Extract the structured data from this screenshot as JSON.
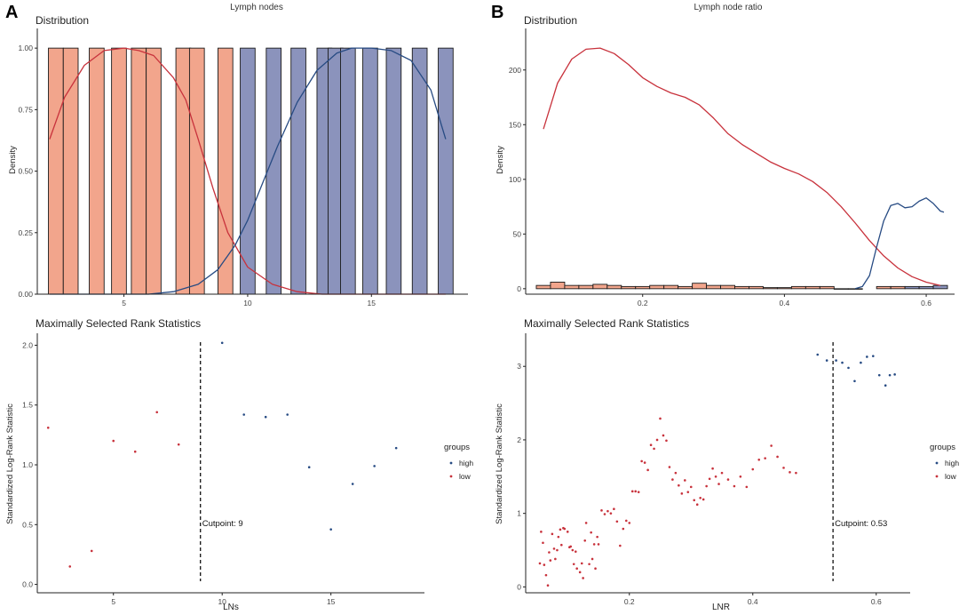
{
  "panels": {
    "a": {
      "letter": "A",
      "title": "Lymph nodes"
    },
    "b": {
      "letter": "B",
      "title": "Lymph node ratio"
    }
  },
  "colors": {
    "low": "#E8836B",
    "low_fill": "#F2A58C",
    "high": "#8B93BC",
    "low_line": "#C8323C",
    "high_line": "#274B83",
    "axis": "#222222",
    "tick_text": "#444444"
  },
  "chart_data": [
    {
      "id": "a_distribution",
      "type": "bar",
      "title": "Distribution",
      "xlabel": "",
      "ylabel": "Density",
      "xlim": [
        1.5,
        18.9
      ],
      "ylim": [
        0,
        1.08
      ],
      "x_ticks": [
        5,
        10,
        15
      ],
      "y_ticks": [
        0.0,
        0.25,
        0.5,
        0.75,
        1.0
      ],
      "y_tick_labels": [
        "0.00",
        "0.25",
        "0.50",
        "0.75",
        "1.00"
      ],
      "bar_width": 0.6,
      "bars": [
        {
          "x": 2.25,
          "y": 1.0,
          "group": "low"
        },
        {
          "x": 2.85,
          "y": 1.0,
          "group": "low"
        },
        {
          "x": 3.9,
          "y": 1.0,
          "group": "low"
        },
        {
          "x": 4.8,
          "y": 1.0,
          "group": "low"
        },
        {
          "x": 5.6,
          "y": 1.0,
          "group": "low"
        },
        {
          "x": 6.2,
          "y": 1.0,
          "group": "low"
        },
        {
          "x": 7.4,
          "y": 1.0,
          "group": "low"
        },
        {
          "x": 7.95,
          "y": 1.0,
          "group": "low"
        },
        {
          "x": 9.1,
          "y": 1.0,
          "group": "low"
        },
        {
          "x": 10.0,
          "y": 1.0,
          "group": "high"
        },
        {
          "x": 11.05,
          "y": 1.0,
          "group": "high"
        },
        {
          "x": 12.05,
          "y": 1.0,
          "group": "high"
        },
        {
          "x": 13.1,
          "y": 1.0,
          "group": "high"
        },
        {
          "x": 13.55,
          "y": 1.0,
          "group": "high"
        },
        {
          "x": 14.05,
          "y": 1.0,
          "group": "high"
        },
        {
          "x": 14.95,
          "y": 1.0,
          "group": "high"
        },
        {
          "x": 15.9,
          "y": 1.0,
          "group": "high"
        },
        {
          "x": 16.95,
          "y": 1.0,
          "group": "high"
        },
        {
          "x": 18.0,
          "y": 1.0,
          "group": "high"
        }
      ],
      "series": [
        {
          "name": "low",
          "x": [
            2.0,
            2.6,
            3.4,
            4.2,
            5.0,
            5.6,
            6.2,
            7.0,
            7.5,
            8.0,
            8.6,
            9.2,
            10.0,
            11.0,
            12.0,
            13.0,
            14.0,
            15.0,
            16.0,
            17.0,
            18.0
          ],
          "values": [
            0.63,
            0.8,
            0.93,
            0.99,
            1.0,
            0.99,
            0.97,
            0.88,
            0.79,
            0.63,
            0.43,
            0.25,
            0.11,
            0.04,
            0.01,
            0.0,
            0.0,
            0.0,
            0.0,
            0.0,
            0.0
          ]
        },
        {
          "name": "high",
          "x": [
            2.0,
            4.0,
            6.0,
            7.0,
            8.0,
            8.8,
            9.5,
            10.0,
            10.6,
            11.2,
            12.0,
            12.8,
            13.6,
            14.2,
            15.0,
            15.8,
            16.6,
            17.4,
            18.0
          ],
          "values": [
            0.0,
            0.0,
            0.0,
            0.01,
            0.04,
            0.1,
            0.2,
            0.3,
            0.45,
            0.6,
            0.78,
            0.91,
            0.98,
            1.0,
            1.0,
            0.99,
            0.95,
            0.83,
            0.63
          ]
        }
      ]
    },
    {
      "id": "b_distribution",
      "type": "bar",
      "title": "Distribution",
      "xlabel": "",
      "ylabel": "Density",
      "xlim": [
        0.035,
        0.64
      ],
      "ylim": [
        -5,
        238
      ],
      "x_ticks": [
        0.2,
        0.4,
        0.6
      ],
      "y_ticks": [
        0,
        50,
        100,
        150,
        200
      ],
      "y_tick_labels": [
        "0",
        "50",
        "100",
        "150",
        "200"
      ],
      "bar_width": 0.02,
      "bars": [
        {
          "x": 0.06,
          "y": 3,
          "group": "low"
        },
        {
          "x": 0.08,
          "y": 6,
          "group": "low"
        },
        {
          "x": 0.1,
          "y": 3,
          "group": "low"
        },
        {
          "x": 0.12,
          "y": 3,
          "group": "low"
        },
        {
          "x": 0.14,
          "y": 4,
          "group": "low"
        },
        {
          "x": 0.16,
          "y": 3,
          "group": "low"
        },
        {
          "x": 0.18,
          "y": 2,
          "group": "low"
        },
        {
          "x": 0.2,
          "y": 2,
          "group": "low"
        },
        {
          "x": 0.22,
          "y": 3,
          "group": "low"
        },
        {
          "x": 0.24,
          "y": 3,
          "group": "low"
        },
        {
          "x": 0.26,
          "y": 2,
          "group": "low"
        },
        {
          "x": 0.28,
          "y": 5,
          "group": "low"
        },
        {
          "x": 0.3,
          "y": 3,
          "group": "low"
        },
        {
          "x": 0.32,
          "y": 3,
          "group": "low"
        },
        {
          "x": 0.34,
          "y": 2,
          "group": "low"
        },
        {
          "x": 0.36,
          "y": 2,
          "group": "low"
        },
        {
          "x": 0.38,
          "y": 1,
          "group": "low"
        },
        {
          "x": 0.4,
          "y": 1,
          "group": "low"
        },
        {
          "x": 0.42,
          "y": 2,
          "group": "low"
        },
        {
          "x": 0.44,
          "y": 2,
          "group": "low"
        },
        {
          "x": 0.46,
          "y": 2,
          "group": "low"
        },
        {
          "x": 0.48,
          "y": 0,
          "group": "low"
        },
        {
          "x": 0.5,
          "y": 0,
          "group": "low"
        },
        {
          "x": 0.54,
          "y": 2,
          "group": "low"
        },
        {
          "x": 0.56,
          "y": 2,
          "group": "low"
        },
        {
          "x": 0.58,
          "y": 2,
          "group": "high"
        },
        {
          "x": 0.6,
          "y": 2,
          "group": "high"
        },
        {
          "x": 0.62,
          "y": 3,
          "group": "high"
        }
      ],
      "series": [
        {
          "name": "low",
          "x": [
            0.06,
            0.08,
            0.1,
            0.12,
            0.14,
            0.16,
            0.18,
            0.2,
            0.22,
            0.24,
            0.26,
            0.28,
            0.3,
            0.32,
            0.34,
            0.36,
            0.38,
            0.4,
            0.42,
            0.44,
            0.46,
            0.48,
            0.5,
            0.52,
            0.54,
            0.56,
            0.58,
            0.6,
            0.62
          ],
          "values": [
            146,
            188,
            210,
            219,
            220,
            215,
            205,
            193,
            185,
            179,
            175,
            168,
            156,
            142,
            132,
            124,
            116,
            110,
            105,
            98,
            88,
            75,
            60,
            44,
            30,
            19,
            11,
            6,
            3
          ]
        },
        {
          "name": "high",
          "x": [
            0.5,
            0.51,
            0.52,
            0.53,
            0.54,
            0.55,
            0.56,
            0.57,
            0.58,
            0.59,
            0.6,
            0.61,
            0.62,
            0.625
          ],
          "values": [
            0,
            2,
            12,
            38,
            62,
            76,
            78,
            74,
            75,
            80,
            83,
            78,
            71,
            70
          ]
        }
      ]
    },
    {
      "id": "a_msrs",
      "type": "scatter",
      "title": "Maximally Selected Rank Statistics",
      "xlabel": "LNs",
      "ylabel": "Standardized Log-Rank Statistic",
      "xlim": [
        1.5,
        19.3
      ],
      "ylim": [
        -0.07,
        2.1
      ],
      "x_ticks": [
        5,
        10,
        15
      ],
      "y_ticks": [
        0.0,
        0.5,
        1.0,
        1.5,
        2.0
      ],
      "y_tick_labels": [
        "0.0",
        "0.5",
        "1.0",
        "1.5",
        "2.0"
      ],
      "cutpoint": 9,
      "cutpoint_label": "Cutpoint: 9",
      "legend_title": "groups",
      "legend_labels": [
        "high",
        "low"
      ],
      "series": [
        {
          "name": "low",
          "x": [
            2,
            3,
            4,
            5,
            6,
            7,
            8
          ],
          "values": [
            1.31,
            0.15,
            0.28,
            1.2,
            1.11,
            1.44,
            1.17
          ]
        },
        {
          "name": "high",
          "x": [
            10,
            11,
            12,
            13,
            14,
            15,
            16,
            17,
            18
          ],
          "values": [
            2.02,
            1.42,
            1.4,
            1.42,
            0.98,
            0.46,
            0.84,
            0.99,
            1.14
          ]
        }
      ]
    },
    {
      "id": "b_msrs",
      "type": "scatter",
      "title": "Maximally Selected Rank Statistics",
      "xlabel": "LNR",
      "ylabel": "Standardized Log-Rank Statistic",
      "xlim": [
        0.032,
        0.655
      ],
      "ylim": [
        -0.08,
        3.45
      ],
      "x_ticks": [
        0.2,
        0.4,
        0.6
      ],
      "y_ticks": [
        0,
        1,
        2,
        3
      ],
      "y_tick_labels": [
        "0",
        "1",
        "2",
        "3"
      ],
      "cutpoint": 0.53,
      "cutpoint_label": "Cutpoint: 0.53",
      "legend_title": "groups",
      "legend_labels": [
        "high",
        "low"
      ],
      "series": [
        {
          "name": "low",
          "x": [
            0.055,
            0.057,
            0.06,
            0.062,
            0.065,
            0.068,
            0.07,
            0.072,
            0.075,
            0.078,
            0.08,
            0.083,
            0.085,
            0.088,
            0.09,
            0.093,
            0.095,
            0.1,
            0.103,
            0.105,
            0.108,
            0.11,
            0.113,
            0.115,
            0.12,
            0.123,
            0.125,
            0.128,
            0.13,
            0.135,
            0.138,
            0.14,
            0.143,
            0.145,
            0.148,
            0.15,
            0.155,
            0.16,
            0.165,
            0.17,
            0.175,
            0.18,
            0.185,
            0.19,
            0.195,
            0.2,
            0.205,
            0.21,
            0.215,
            0.22,
            0.225,
            0.23,
            0.235,
            0.24,
            0.245,
            0.25,
            0.255,
            0.26,
            0.265,
            0.27,
            0.275,
            0.28,
            0.285,
            0.29,
            0.295,
            0.3,
            0.305,
            0.31,
            0.315,
            0.32,
            0.325,
            0.33,
            0.335,
            0.34,
            0.345,
            0.35,
            0.36,
            0.37,
            0.38,
            0.39,
            0.4,
            0.41,
            0.42,
            0.43,
            0.44,
            0.45,
            0.46,
            0.47
          ],
          "values": [
            0.32,
            0.75,
            0.6,
            0.3,
            0.16,
            0.02,
            0.47,
            0.36,
            0.72,
            0.52,
            0.38,
            0.5,
            0.68,
            0.78,
            0.57,
            0.8,
            0.79,
            0.75,
            0.54,
            0.55,
            0.5,
            0.31,
            0.48,
            0.25,
            0.2,
            0.32,
            0.12,
            0.63,
            0.87,
            0.31,
            0.74,
            0.38,
            0.58,
            0.25,
            0.68,
            0.58,
            1.04,
            0.99,
            1.03,
            1.0,
            1.06,
            0.89,
            0.56,
            0.79,
            0.9,
            0.87,
            1.3,
            1.3,
            1.29,
            1.71,
            1.69,
            1.59,
            1.93,
            1.88,
            2.0,
            2.29,
            2.06,
            1.99,
            1.63,
            1.46,
            1.55,
            1.38,
            1.27,
            1.45,
            1.29,
            1.36,
            1.18,
            1.12,
            1.21,
            1.19,
            1.37,
            1.47,
            1.61,
            1.5,
            1.4,
            1.55,
            1.46,
            1.37,
            1.5,
            1.36,
            1.6,
            1.73,
            1.75,
            1.92,
            1.77,
            1.62,
            1.56,
            1.55
          ]
        },
        {
          "name": "high",
          "x": [
            0.505,
            0.52,
            0.535,
            0.545,
            0.555,
            0.565,
            0.575,
            0.585,
            0.595,
            0.605,
            0.615,
            0.622,
            0.63
          ],
          "values": [
            3.16,
            3.08,
            3.08,
            3.05,
            2.98,
            2.8,
            3.05,
            3.13,
            3.14,
            2.88,
            2.74,
            2.88,
            2.89
          ]
        }
      ]
    }
  ]
}
